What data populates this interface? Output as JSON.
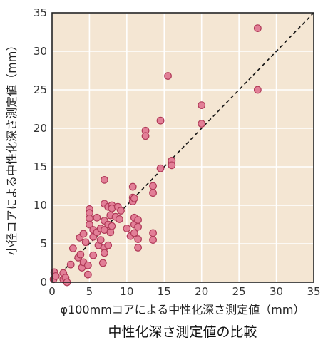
{
  "chart_data": {
    "type": "scatter",
    "title": "",
    "caption": "中性化深さ測定値の比較",
    "xlabel": "φ100mmコアによる中性化深さ測定値（mm）",
    "ylabel": "小径コアによる中性化深さ測定値（mm）",
    "xlim": [
      0,
      35
    ],
    "ylim": [
      0,
      35
    ],
    "xticks": [
      0,
      5,
      10,
      15,
      20,
      25,
      30,
      35
    ],
    "yticks": [
      0,
      5,
      10,
      15,
      20,
      25,
      30,
      35
    ],
    "grid": true,
    "reference_line": {
      "style": "dashed",
      "x": [
        0,
        35
      ],
      "y": [
        0,
        35
      ]
    },
    "colors": {
      "plot_background": "#f4e6d3",
      "grid": "#ffffff",
      "marker_fill": "#e27f97",
      "marker_stroke": "#b03a58",
      "reference_line": "#111111"
    },
    "series": [
      {
        "points": [
          [
            0.2,
            0.4
          ],
          [
            0.3,
            1.3
          ],
          [
            0.5,
            0.8
          ],
          [
            1.5,
            1.2
          ],
          [
            1.5,
            0.4
          ],
          [
            1.8,
            0.6
          ],
          [
            2.0,
            0.0
          ],
          [
            2.5,
            2.3
          ],
          [
            2.8,
            4.4
          ],
          [
            3.5,
            3.2
          ],
          [
            3.7,
            5.8
          ],
          [
            3.8,
            3.6
          ],
          [
            4.0,
            1.9
          ],
          [
            4.2,
            2.6
          ],
          [
            4.2,
            6.3
          ],
          [
            4.5,
            5.2
          ],
          [
            4.8,
            2.2
          ],
          [
            4.8,
            1.0
          ],
          [
            5.0,
            9.5
          ],
          [
            5.0,
            9.0
          ],
          [
            5.0,
            8.3
          ],
          [
            5.0,
            7.5
          ],
          [
            5.5,
            6.8
          ],
          [
            5.5,
            5.9
          ],
          [
            5.5,
            3.5
          ],
          [
            6.0,
            8.4
          ],
          [
            6.0,
            6.5
          ],
          [
            6.2,
            4.8
          ],
          [
            6.5,
            7.0
          ],
          [
            6.5,
            5.5
          ],
          [
            6.8,
            2.5
          ],
          [
            7.0,
            13.3
          ],
          [
            7.0,
            10.2
          ],
          [
            7.0,
            8.0
          ],
          [
            7.0,
            6.8
          ],
          [
            7.0,
            4.5
          ],
          [
            7.0,
            3.8
          ],
          [
            7.5,
            9.8
          ],
          [
            7.5,
            7.5
          ],
          [
            7.5,
            4.8
          ],
          [
            7.8,
            8.7
          ],
          [
            7.8,
            6.5
          ],
          [
            8.0,
            10.0
          ],
          [
            8.0,
            9.6
          ],
          [
            8.0,
            7.3
          ],
          [
            8.5,
            8.5
          ],
          [
            8.8,
            9.8
          ],
          [
            9.0,
            8.2
          ],
          [
            9.2,
            9.3
          ],
          [
            10.0,
            7.0
          ],
          [
            10.5,
            6.0
          ],
          [
            10.8,
            12.4
          ],
          [
            10.8,
            11.0
          ],
          [
            10.8,
            10.5
          ],
          [
            11.0,
            10.9
          ],
          [
            11.0,
            8.4
          ],
          [
            11.0,
            7.5
          ],
          [
            11.0,
            6.4
          ],
          [
            11.5,
            8.1
          ],
          [
            11.5,
            7.2
          ],
          [
            11.5,
            5.6
          ],
          [
            11.5,
            4.5
          ],
          [
            12.5,
            19.7
          ],
          [
            12.5,
            19.0
          ],
          [
            13.5,
            12.5
          ],
          [
            13.5,
            11.6
          ],
          [
            13.5,
            6.4
          ],
          [
            13.5,
            5.5
          ],
          [
            14.5,
            21.0
          ],
          [
            14.5,
            14.8
          ],
          [
            15.5,
            26.8
          ],
          [
            16.0,
            15.8
          ],
          [
            16.0,
            15.2
          ],
          [
            20.0,
            23.0
          ],
          [
            20.0,
            20.6
          ],
          [
            27.5,
            33.0
          ],
          [
            27.5,
            25.0
          ]
        ]
      }
    ]
  }
}
